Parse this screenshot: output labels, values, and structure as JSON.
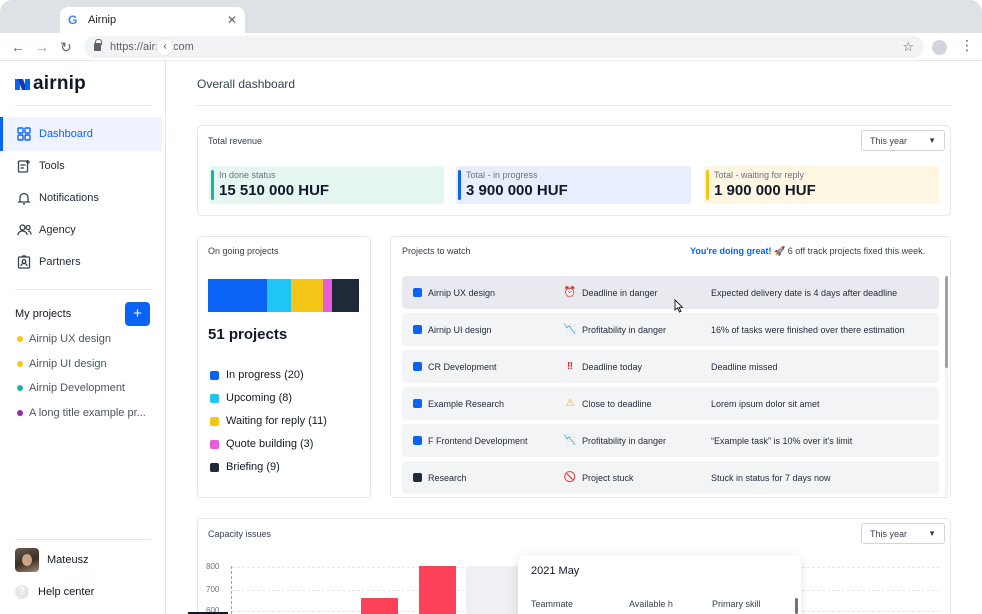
{
  "browser": {
    "tab_title": "Airnip",
    "tab_favicon": "G",
    "tab_close": "✕",
    "url": "https://airnip.com",
    "back": "←",
    "forward": "→",
    "reload": "↻",
    "star": "☆",
    "menu": "⋮"
  },
  "logo": {
    "text": "airnip",
    "brand_color": "#0b63f6"
  },
  "collapse_icon": "‹",
  "nav": [
    {
      "label": "Dashboard",
      "icon": "dashboard-icon",
      "active": true
    },
    {
      "label": "Tools",
      "icon": "tools-icon"
    },
    {
      "label": "Notifications",
      "icon": "bell-icon"
    },
    {
      "label": "Agency",
      "icon": "users-icon"
    },
    {
      "label": "Partners",
      "icon": "partners-icon"
    }
  ],
  "my_projects": {
    "title": "My projects",
    "add": "+",
    "items": [
      {
        "label": "Airnip UX design",
        "color": "#f5c518"
      },
      {
        "label": "Airnip UI design",
        "color": "#f5c518"
      },
      {
        "label": "Airnip Development",
        "color": "#14b8a6"
      },
      {
        "label": "A long title example pr...",
        "color": "#9c27b0"
      }
    ]
  },
  "user": {
    "name": "Mateusz"
  },
  "help": {
    "label": "Help center",
    "icon": "?"
  },
  "page_title": "Overall dashboard",
  "revenue": {
    "title": "Total revenue",
    "period": "This year",
    "stats": [
      {
        "label": "In done status",
        "value": "15 510 000 HUF",
        "bg": "#e6f6f1",
        "accent": "#14b8a6"
      },
      {
        "label": "Total - in progress",
        "value": "3 900 000 HUF",
        "bg": "#e8eefc",
        "accent": "#0b63f6"
      },
      {
        "label": "Total - waiting for reply",
        "value": "1 900 000 HUF",
        "bg": "#fdf6e3",
        "accent": "#f5c518"
      }
    ]
  },
  "ongoing": {
    "title": "On going projects",
    "count": "51 projects",
    "legend": [
      {
        "label": "In progress (20)",
        "value": 20,
        "color": "#0b63f6"
      },
      {
        "label": "Upcoming (8)",
        "value": 8,
        "color": "#1ec5f5"
      },
      {
        "label": "Waiting for reply (11)",
        "value": 11,
        "color": "#f5c518"
      },
      {
        "label": "Quote building (3)",
        "value": 3,
        "color": "#e85ddb"
      },
      {
        "label": "Briefing (9)",
        "value": 9,
        "color": "#1f2937"
      }
    ]
  },
  "watch": {
    "title": "Projects to watch",
    "great": "You're doing great!",
    "rocket": "🚀",
    "message": "6 off track projects fixed this week.",
    "rows": [
      {
        "name": "Airnip UX design",
        "color": "#0b63f6",
        "icon": "alarm-clock-icon",
        "glyph": "⏰",
        "status": "Deadline in danger",
        "detail": "Expected delivery date is 4 days after deadline"
      },
      {
        "name": "Airnip UI design",
        "color": "#0b63f6",
        "icon": "chart-down-icon",
        "glyph": "📉",
        "status": "Profitability in danger",
        "detail": "16% of tasks were finished over there estimation"
      },
      {
        "name": "CR Development",
        "color": "#0b63f6",
        "icon": "double-exclamation-icon",
        "glyph": "‼",
        "status": "Deadline today",
        "detail": "Deadline missed"
      },
      {
        "name": "Example Research",
        "color": "#0b63f6",
        "icon": "warning-icon",
        "glyph": "⚠",
        "status": "Close to deadline",
        "detail": "Lorem ipsum dolor sit amet"
      },
      {
        "name": "F Frontend Development",
        "color": "#0b63f6",
        "icon": "chart-down-icon",
        "glyph": "📉",
        "status": "Profitability in danger",
        "detail": "“Example task” is 10% over it's limit"
      },
      {
        "name": "Research",
        "color": "#1f2937",
        "icon": "no-entry-icon",
        "glyph": "🚫",
        "status": "Project stuck",
        "detail": "Stuck in status for 7 days now"
      }
    ]
  },
  "capacity": {
    "title": "Capacity issues",
    "period": "This year",
    "ticks": [
      "800",
      "700",
      "600"
    ],
    "tooltip": {
      "title": "2021 May",
      "columns": [
        "Teammate",
        "Available h",
        "Primary skill"
      ]
    }
  }
}
